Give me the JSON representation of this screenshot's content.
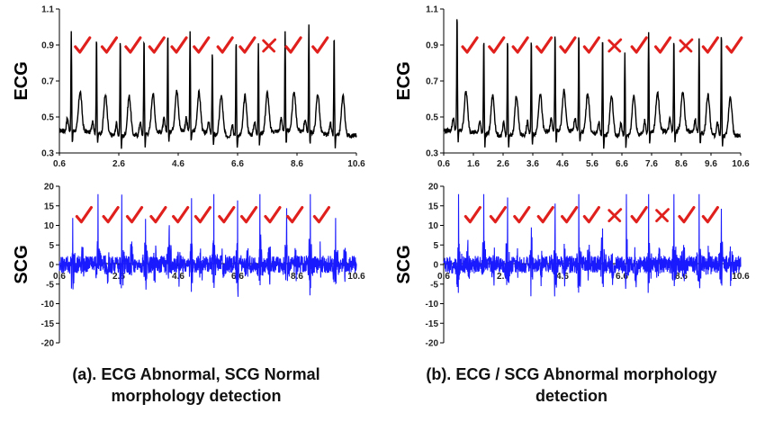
{
  "panel_a": {
    "caption_line1": "(a). ECG Abnormal, SCG Normal",
    "caption_line2": "morphology detection"
  },
  "panel_b": {
    "caption_line1": "(b). ECG  / SCG Abnormal morphology",
    "caption_line2": "detection"
  },
  "chart_data": [
    {
      "id": "a-ecg",
      "type": "line",
      "ylabel": "ECG",
      "xlim": [
        0.6,
        10.6
      ],
      "ylim": [
        0.3,
        1.1
      ],
      "x_ticks": [
        "0.6",
        "2.6",
        "4.6",
        "6.6",
        "8.6",
        "10.6"
      ],
      "y_ticks": [
        "0.3",
        "0.5",
        "0.7",
        "0.9",
        "1.1"
      ],
      "series_color": "#000000",
      "baseline": 0.41,
      "r_peaks": [
        {
          "x": 1.0,
          "y": 0.96
        },
        {
          "x": 1.85,
          "y": 0.98
        },
        {
          "x": 2.65,
          "y": 0.97
        },
        {
          "x": 3.45,
          "y": 0.98
        },
        {
          "x": 4.25,
          "y": 0.98
        },
        {
          "x": 5.0,
          "y": 0.96
        },
        {
          "x": 5.75,
          "y": 0.89
        },
        {
          "x": 6.55,
          "y": 0.97
        },
        {
          "x": 7.3,
          "y": 0.92
        },
        {
          "x": 8.2,
          "y": 0.95
        },
        {
          "x": 9.0,
          "y": 1.01
        },
        {
          "x": 9.85,
          "y": 0.99
        }
      ],
      "beat_marks": [
        {
          "x": 1.35,
          "mark": "check"
        },
        {
          "x": 2.25,
          "mark": "check"
        },
        {
          "x": 3.05,
          "mark": "check"
        },
        {
          "x": 3.85,
          "mark": "check"
        },
        {
          "x": 4.6,
          "mark": "check"
        },
        {
          "x": 5.35,
          "mark": "check"
        },
        {
          "x": 6.15,
          "mark": "check"
        },
        {
          "x": 6.9,
          "mark": "check"
        },
        {
          "x": 7.65,
          "mark": "cross"
        },
        {
          "x": 8.45,
          "mark": "check"
        },
        {
          "x": 9.35,
          "mark": "check"
        }
      ]
    },
    {
      "id": "a-scg",
      "type": "line",
      "ylabel": "SCG",
      "xlim": [
        0.6,
        10.6
      ],
      "ylim": [
        -20,
        20
      ],
      "x_ticks": [
        "0.6",
        "2.6",
        "4.6",
        "6.6",
        "8.6",
        "10.6"
      ],
      "y_ticks": [
        "-20",
        "-15",
        "-10",
        "-5",
        "0",
        "5",
        "10",
        "15",
        "20"
      ],
      "series_color": "#1a1aff",
      "beat_x": [
        1.05,
        1.9,
        2.7,
        3.5,
        4.3,
        5.05,
        5.8,
        6.6,
        7.35,
        8.25,
        9.05,
        9.9
      ],
      "beat_marks": [
        {
          "x": 1.4,
          "mark": "check"
        },
        {
          "x": 2.3,
          "mark": "check"
        },
        {
          "x": 3.1,
          "mark": "check"
        },
        {
          "x": 3.9,
          "mark": "check"
        },
        {
          "x": 4.65,
          "mark": "check"
        },
        {
          "x": 5.4,
          "mark": "check"
        },
        {
          "x": 6.2,
          "mark": "check"
        },
        {
          "x": 6.95,
          "mark": "check"
        },
        {
          "x": 7.75,
          "mark": "check"
        },
        {
          "x": 8.5,
          "mark": "check"
        },
        {
          "x": 9.4,
          "mark": "check"
        }
      ]
    },
    {
      "id": "b-ecg",
      "type": "line",
      "ylabel": "ECG",
      "xlim": [
        0.6,
        10.6
      ],
      "ylim": [
        0.3,
        1.1
      ],
      "x_ticks": [
        "0.6",
        "1.6",
        "2.6",
        "3.6",
        "4.6",
        "5.6",
        "6.6",
        "7.6",
        "8.6",
        "9.6",
        "10.6"
      ],
      "y_ticks": [
        "0.3",
        "0.5",
        "0.7",
        "0.9",
        "1.1"
      ],
      "series_color": "#000000",
      "baseline": 0.41,
      "r_peaks": [
        {
          "x": 1.05,
          "y": 1.09
        },
        {
          "x": 1.95,
          "y": 0.97
        },
        {
          "x": 2.75,
          "y": 0.97
        },
        {
          "x": 3.55,
          "y": 0.97
        },
        {
          "x": 4.35,
          "y": 0.98
        },
        {
          "x": 5.15,
          "y": 0.98
        },
        {
          "x": 5.95,
          "y": 0.98
        },
        {
          "x": 6.7,
          "y": 0.88
        },
        {
          "x": 7.5,
          "y": 0.97
        },
        {
          "x": 8.35,
          "y": 0.95
        },
        {
          "x": 9.2,
          "y": 0.93
        },
        {
          "x": 9.95,
          "y": 1.01
        }
      ],
      "beat_marks": [
        {
          "x": 1.45,
          "mark": "check"
        },
        {
          "x": 2.35,
          "mark": "check"
        },
        {
          "x": 3.15,
          "mark": "check"
        },
        {
          "x": 3.95,
          "mark": "check"
        },
        {
          "x": 4.75,
          "mark": "check"
        },
        {
          "x": 5.55,
          "mark": "check"
        },
        {
          "x": 6.35,
          "mark": "cross"
        },
        {
          "x": 7.15,
          "mark": "check"
        },
        {
          "x": 7.95,
          "mark": "check"
        },
        {
          "x": 8.75,
          "mark": "cross"
        },
        {
          "x": 9.55,
          "mark": "check"
        },
        {
          "x": 10.35,
          "mark": "check"
        }
      ]
    },
    {
      "id": "b-scg",
      "type": "line",
      "ylabel": "SCG",
      "xlim": [
        0.6,
        10.6
      ],
      "ylim": [
        -20,
        20
      ],
      "x_ticks": [
        "0.6",
        "2.6",
        "4.6",
        "6.6",
        "8.6",
        "10.6"
      ],
      "y_ticks": [
        "-20",
        "-15",
        "-10",
        "-5",
        "0",
        "5",
        "10",
        "15",
        "20"
      ],
      "series_color": "#1a1aff",
      "beat_x": [
        1.1,
        1.95,
        2.75,
        3.55,
        4.35,
        5.15,
        5.95,
        6.75,
        7.5,
        8.35,
        9.2,
        9.95
      ],
      "beat_marks": [
        {
          "x": 1.55,
          "mark": "check"
        },
        {
          "x": 2.4,
          "mark": "check"
        },
        {
          "x": 3.2,
          "mark": "check"
        },
        {
          "x": 4.0,
          "mark": "check"
        },
        {
          "x": 4.8,
          "mark": "check"
        },
        {
          "x": 5.55,
          "mark": "check"
        },
        {
          "x": 6.35,
          "mark": "cross"
        },
        {
          "x": 7.15,
          "mark": "check"
        },
        {
          "x": 7.95,
          "mark": "cross"
        },
        {
          "x": 8.75,
          "mark": "check"
        },
        {
          "x": 9.55,
          "mark": "check"
        }
      ]
    }
  ]
}
